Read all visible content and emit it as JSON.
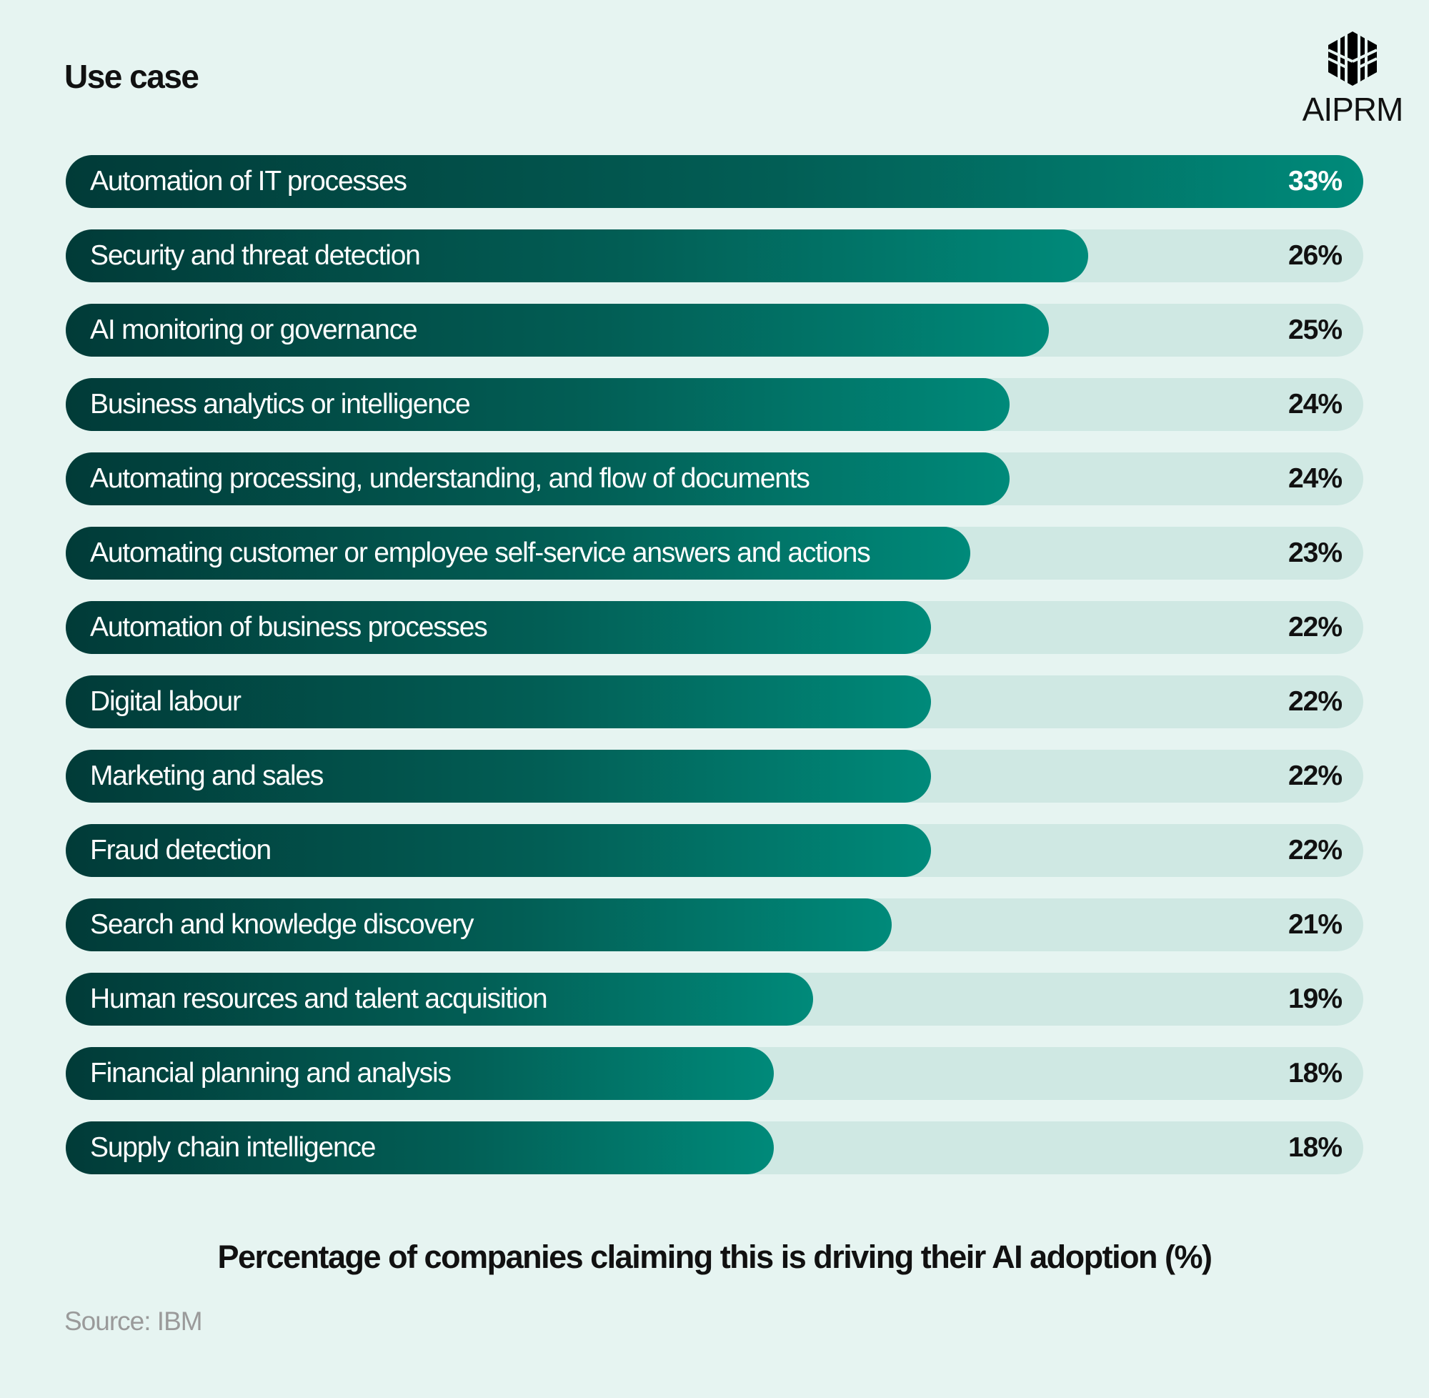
{
  "chart_data": {
    "type": "bar",
    "orientation": "horizontal",
    "title": "Use case",
    "xlabel": "Percentage of companies claiming this is driving their AI adoption (%)",
    "categories": [
      "Automation of IT processes",
      "Security and threat detection",
      "AI monitoring or governance",
      "Business analytics or intelligence",
      "Automating processing, understanding, and flow of documents",
      "Automating customer or employee self-service answers and actions",
      "Automation of business processes",
      "Digital labour",
      "Marketing and sales",
      "Fraud detection",
      "Search and knowledge discovery",
      "Human resources and talent acquisition",
      "Financial planning and analysis",
      "Supply chain intelligence"
    ],
    "values": [
      33,
      26,
      25,
      24,
      24,
      23,
      22,
      22,
      22,
      22,
      21,
      19,
      18,
      18
    ],
    "value_labels": [
      "33%",
      "26%",
      "25%",
      "24%",
      "24%",
      "23%",
      "22%",
      "22%",
      "22%",
      "22%",
      "21%",
      "19%",
      "18%",
      "18%"
    ],
    "xlim": [
      0,
      33
    ],
    "grid": false,
    "colors": {
      "bar_start": "#013b38",
      "bar_end": "#008a7a",
      "track": "#cfe8e3",
      "background": "#e6f4f1"
    }
  },
  "brand": {
    "logo_text": "AIPRM",
    "logo_icon": "cube-logo-icon"
  },
  "source": "Source: IBM"
}
